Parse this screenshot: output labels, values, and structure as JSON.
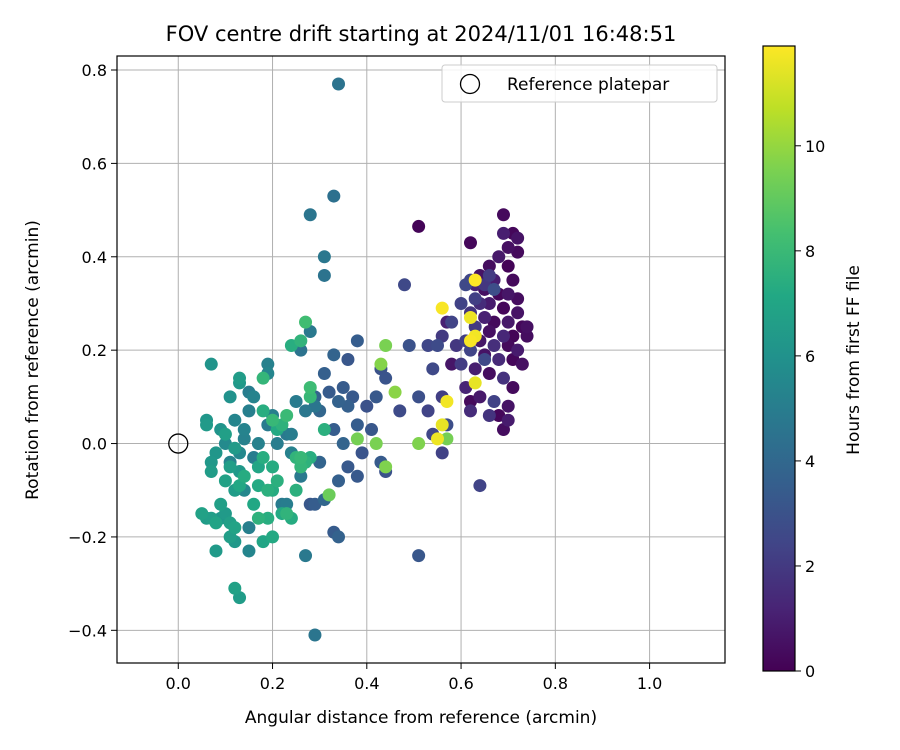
{
  "chart_data": {
    "type": "scatter",
    "title": "FOV centre drift starting at 2024/11/01 16:48:51",
    "xlabel": "Angular distance from reference (arcmin)",
    "ylabel": "Rotation from reference (arcmin)",
    "xlim": [
      -0.13,
      1.16
    ],
    "ylim": [
      -0.47,
      0.83
    ],
    "xticks": [
      0.0,
      0.2,
      0.4,
      0.6,
      0.8,
      1.0
    ],
    "xtick_labels": [
      "0.0",
      "0.2",
      "0.4",
      "0.6",
      "0.8",
      "1.0"
    ],
    "yticks": [
      -0.4,
      -0.2,
      0.0,
      0.2,
      0.4,
      0.6,
      0.8
    ],
    "ytick_labels": [
      "−0.4",
      "−0.2",
      "0.0",
      "0.2",
      "0.4",
      "0.6",
      "0.8"
    ],
    "grid": true,
    "legend": {
      "placement": "top-right",
      "entries": [
        "Reference platepar"
      ]
    },
    "reference_point": {
      "x": 0.0,
      "y": 0.0
    },
    "colorbar": {
      "label": "Hours from first FF file",
      "range": [
        0,
        11.9
      ],
      "ticks": [
        0,
        2,
        4,
        6,
        8,
        10
      ],
      "tick_labels": [
        "0",
        "2",
        "4",
        "6",
        "8",
        "10"
      ],
      "colormap": "viridis"
    },
    "points": [
      [
        0.51,
        0.465,
        0.1
      ],
      [
        0.62,
        0.43,
        0.2
      ],
      [
        0.69,
        0.49,
        0.3
      ],
      [
        0.71,
        0.45,
        0.2
      ],
      [
        0.7,
        0.42,
        0.5
      ],
      [
        0.72,
        0.41,
        0.3
      ],
      [
        0.68,
        0.4,
        0.8
      ],
      [
        0.66,
        0.38,
        0.4
      ],
      [
        0.7,
        0.38,
        0.1
      ],
      [
        0.64,
        0.36,
        0.6
      ],
      [
        0.67,
        0.35,
        1.0
      ],
      [
        0.71,
        0.35,
        0.3
      ],
      [
        0.63,
        0.34,
        1.2
      ],
      [
        0.65,
        0.33,
        0.5
      ],
      [
        0.68,
        0.32,
        0.2
      ],
      [
        0.7,
        0.32,
        0.7
      ],
      [
        0.72,
        0.31,
        0.4
      ],
      [
        0.64,
        0.3,
        1.5
      ],
      [
        0.66,
        0.3,
        0.9
      ],
      [
        0.69,
        0.29,
        0.2
      ],
      [
        0.72,
        0.28,
        0.6
      ],
      [
        0.62,
        0.28,
        1.8
      ],
      [
        0.65,
        0.27,
        1.1
      ],
      [
        0.67,
        0.26,
        0.3
      ],
      [
        0.7,
        0.26,
        0.8
      ],
      [
        0.73,
        0.25,
        0.2
      ],
      [
        0.63,
        0.25,
        2.0
      ],
      [
        0.66,
        0.24,
        0.5
      ],
      [
        0.69,
        0.23,
        1.3
      ],
      [
        0.71,
        0.23,
        0.1
      ],
      [
        0.74,
        0.23,
        0.4
      ],
      [
        0.61,
        0.22,
        2.2
      ],
      [
        0.64,
        0.22,
        0.7
      ],
      [
        0.67,
        0.21,
        1.6
      ],
      [
        0.7,
        0.21,
        0.3
      ],
      [
        0.72,
        0.2,
        0.9
      ],
      [
        0.59,
        0.21,
        1.9
      ],
      [
        0.62,
        0.2,
        2.4
      ],
      [
        0.65,
        0.19,
        0.6
      ],
      [
        0.68,
        0.18,
        1.4
      ],
      [
        0.71,
        0.18,
        0.2
      ],
      [
        0.73,
        0.17,
        0.5
      ],
      [
        0.6,
        0.17,
        2.1
      ],
      [
        0.63,
        0.16,
        1.0
      ],
      [
        0.66,
        0.15,
        0.4
      ],
      [
        0.69,
        0.14,
        1.7
      ],
      [
        0.71,
        0.12,
        0.3
      ],
      [
        0.61,
        0.12,
        1.2
      ],
      [
        0.64,
        0.1,
        0.8
      ],
      [
        0.67,
        0.09,
        2.3
      ],
      [
        0.7,
        0.08,
        0.6
      ],
      [
        0.62,
        0.07,
        1.5
      ],
      [
        0.68,
        0.06,
        0.2
      ],
      [
        0.7,
        0.05,
        0.9
      ],
      [
        0.69,
        0.03,
        0.4
      ],
      [
        0.66,
        0.06,
        1.8
      ],
      [
        0.62,
        0.09,
        0.3
      ],
      [
        0.58,
        0.17,
        0.7
      ],
      [
        0.57,
        0.26,
        1.1
      ],
      [
        0.56,
        0.23,
        2.0
      ],
      [
        0.65,
        0.18,
        2.6
      ],
      [
        0.64,
        -0.09,
        2.4
      ],
      [
        0.74,
        0.25,
        0.5
      ],
      [
        0.72,
        0.44,
        0.6
      ],
      [
        0.69,
        0.45,
        1.0
      ],
      [
        0.62,
        0.35,
        2.5
      ],
      [
        0.63,
        0.31,
        2.2
      ],
      [
        0.61,
        0.34,
        2.6
      ],
      [
        0.66,
        0.36,
        2.1
      ],
      [
        0.65,
        0.34,
        1.9
      ],
      [
        0.67,
        0.33,
        2.8
      ],
      [
        0.6,
        0.3,
        2.3
      ],
      [
        0.58,
        0.26,
        2.4
      ],
      [
        0.55,
        0.21,
        2.7
      ],
      [
        0.53,
        0.21,
        2.5
      ],
      [
        0.54,
        0.16,
        2.6
      ],
      [
        0.56,
        0.1,
        2.2
      ],
      [
        0.57,
        0.04,
        2.8
      ],
      [
        0.53,
        0.07,
        2.4
      ],
      [
        0.54,
        0.02,
        2.5
      ],
      [
        0.56,
        -0.02,
        2.3
      ],
      [
        0.51,
        0.1,
        2.9
      ],
      [
        0.49,
        0.21,
        3.0
      ],
      [
        0.48,
        0.34,
        2.6
      ],
      [
        0.51,
        -0.24,
        3.2
      ],
      [
        0.47,
        0.07,
        2.7
      ],
      [
        0.43,
        0.16,
        3.0
      ],
      [
        0.44,
        0.14,
        3.1
      ],
      [
        0.42,
        0.1,
        3.3
      ],
      [
        0.4,
        0.08,
        3.0
      ],
      [
        0.41,
        0.03,
        3.2
      ],
      [
        0.43,
        -0.04,
        3.4
      ],
      [
        0.39,
        -0.02,
        3.1
      ],
      [
        0.38,
        0.04,
        3.5
      ],
      [
        0.37,
        0.1,
        3.3
      ],
      [
        0.36,
        0.08,
        3.6
      ],
      [
        0.35,
        0.12,
        3.4
      ],
      [
        0.34,
        0.09,
        3.7
      ],
      [
        0.36,
        0.18,
        3.2
      ],
      [
        0.38,
        0.22,
        3.5
      ],
      [
        0.33,
        0.19,
        3.8
      ],
      [
        0.31,
        0.15,
        3.6
      ],
      [
        0.32,
        0.11,
        3.4
      ],
      [
        0.3,
        0.07,
        3.9
      ],
      [
        0.29,
        0.1,
        3.7
      ],
      [
        0.33,
        0.03,
        3.5
      ],
      [
        0.35,
        0.0,
        3.8
      ],
      [
        0.36,
        -0.05,
        3.3
      ],
      [
        0.34,
        -0.08,
        3.6
      ],
      [
        0.31,
        -0.12,
        3.9
      ],
      [
        0.33,
        -0.19,
        3.4
      ],
      [
        0.34,
        -0.2,
        3.7
      ],
      [
        0.28,
        -0.13,
        3.2
      ],
      [
        0.29,
        -0.13,
        3.5
      ],
      [
        0.3,
        -0.04,
        3.8
      ],
      [
        0.44,
        -0.06,
        3.0
      ],
      [
        0.38,
        -0.07,
        3.3
      ],
      [
        0.34,
        0.77,
        4.5
      ],
      [
        0.28,
        0.49,
        4.6
      ],
      [
        0.33,
        0.53,
        4.4
      ],
      [
        0.31,
        0.4,
        4.7
      ],
      [
        0.31,
        0.36,
        4.5
      ],
      [
        0.28,
        0.24,
        4.8
      ],
      [
        0.26,
        0.2,
        4.5
      ],
      [
        0.29,
        0.08,
        4.6
      ],
      [
        0.25,
        0.09,
        4.9
      ],
      [
        0.27,
        0.07,
        4.7
      ],
      [
        0.24,
        0.02,
        5.0
      ],
      [
        0.23,
        0.02,
        4.8
      ],
      [
        0.2,
        0.06,
        5.1
      ],
      [
        0.19,
        0.04,
        4.9
      ],
      [
        0.17,
        0.0,
        5.2
      ],
      [
        0.16,
        -0.03,
        5.0
      ],
      [
        0.14,
        0.03,
        5.3
      ],
      [
        0.15,
        0.07,
        5.1
      ],
      [
        0.12,
        0.05,
        5.4
      ],
      [
        0.14,
        0.01,
        5.2
      ],
      [
        0.13,
        -0.02,
        5.5
      ],
      [
        0.11,
        -0.04,
        5.3
      ],
      [
        0.1,
        0.0,
        5.6
      ],
      [
        0.19,
        0.17,
        5.2
      ],
      [
        0.19,
        0.15,
        5.4
      ],
      [
        0.15,
        0.11,
        5.0
      ],
      [
        0.16,
        0.1,
        5.3
      ],
      [
        0.14,
        -0.1,
        5.5
      ],
      [
        0.15,
        -0.18,
        5.1
      ],
      [
        0.15,
        -0.23,
        5.4
      ],
      [
        0.22,
        -0.13,
        4.9
      ],
      [
        0.27,
        -0.24,
        4.8
      ],
      [
        0.29,
        -0.41,
        4.6
      ],
      [
        0.23,
        -0.13,
        5.0
      ],
      [
        0.26,
        -0.07,
        4.8
      ],
      [
        0.24,
        -0.02,
        5.2
      ],
      [
        0.21,
        0.0,
        5.0
      ],
      [
        0.07,
        0.17,
        6.1
      ],
      [
        0.13,
        0.13,
        6.3
      ],
      [
        0.11,
        0.1,
        6.0
      ],
      [
        0.13,
        0.14,
        6.5
      ],
      [
        0.06,
        0.05,
        6.2
      ],
      [
        0.06,
        0.04,
        6.4
      ],
      [
        0.09,
        0.03,
        6.1
      ],
      [
        0.1,
        0.02,
        6.7
      ],
      [
        0.07,
        -0.04,
        6.3
      ],
      [
        0.07,
        -0.06,
        6.5
      ],
      [
        0.08,
        -0.02,
        6.2
      ],
      [
        0.11,
        -0.05,
        6.6
      ],
      [
        0.12,
        -0.01,
        6.4
      ],
      [
        0.1,
        -0.08,
        6.8
      ],
      [
        0.12,
        -0.1,
        6.5
      ],
      [
        0.13,
        -0.06,
        6.3
      ],
      [
        0.09,
        -0.13,
        6.7
      ],
      [
        0.1,
        -0.15,
        6.4
      ],
      [
        0.08,
        -0.17,
        6.9
      ],
      [
        0.07,
        -0.16,
        6.6
      ],
      [
        0.09,
        -0.16,
        6.2
      ],
      [
        0.05,
        -0.15,
        6.8
      ],
      [
        0.06,
        -0.16,
        6.5
      ],
      [
        0.11,
        -0.17,
        6.7
      ],
      [
        0.12,
        -0.21,
        6.3
      ],
      [
        0.12,
        -0.18,
        6.9
      ],
      [
        0.11,
        -0.2,
        6.6
      ],
      [
        0.08,
        -0.23,
        6.4
      ],
      [
        0.12,
        -0.31,
        6.8
      ],
      [
        0.13,
        -0.33,
        6.5
      ],
      [
        0.18,
        -0.21,
        7.0
      ],
      [
        0.2,
        -0.2,
        7.2
      ],
      [
        0.13,
        -0.09,
        7.1
      ],
      [
        0.14,
        -0.07,
        7.3
      ],
      [
        0.17,
        -0.05,
        7.0
      ],
      [
        0.18,
        -0.03,
        7.4
      ],
      [
        0.17,
        -0.09,
        7.2
      ],
      [
        0.19,
        -0.1,
        7.5
      ],
      [
        0.2,
        -0.1,
        7.3
      ],
      [
        0.16,
        -0.13,
        7.1
      ],
      [
        0.17,
        -0.16,
        7.6
      ],
      [
        0.19,
        -0.16,
        7.4
      ],
      [
        0.22,
        -0.15,
        7.2
      ],
      [
        0.23,
        -0.15,
        7.7
      ],
      [
        0.24,
        -0.16,
        7.3
      ],
      [
        0.25,
        -0.1,
        7.5
      ],
      [
        0.26,
        -0.05,
        7.8
      ],
      [
        0.27,
        -0.04,
        7.6
      ],
      [
        0.28,
        -0.03,
        7.4
      ],
      [
        0.26,
        -0.03,
        7.9
      ],
      [
        0.25,
        -0.03,
        7.7
      ],
      [
        0.21,
        -0.08,
        7.5
      ],
      [
        0.2,
        -0.05,
        7.3
      ],
      [
        0.22,
        0.04,
        7.6
      ],
      [
        0.2,
        0.05,
        7.9
      ],
      [
        0.18,
        0.07,
        7.4
      ],
      [
        0.18,
        0.14,
        7.8
      ],
      [
        0.21,
        0.03,
        7.2
      ],
      [
        0.23,
        0.06,
        8.0
      ],
      [
        0.24,
        0.21,
        7.4
      ],
      [
        0.26,
        0.22,
        7.7
      ],
      [
        0.27,
        0.26,
        8.2
      ],
      [
        0.28,
        0.1,
        7.9
      ],
      [
        0.28,
        0.12,
        8.1
      ],
      [
        0.31,
        0.03,
        7.5
      ],
      [
        0.32,
        -0.11,
        9.2
      ],
      [
        0.38,
        0.01,
        9.4
      ],
      [
        0.42,
        0.0,
        9.5
      ],
      [
        0.44,
        -0.05,
        9.6
      ],
      [
        0.43,
        0.17,
        9.7
      ],
      [
        0.44,
        0.21,
        9.5
      ],
      [
        0.46,
        0.11,
        9.8
      ],
      [
        0.51,
        0.0,
        9.6
      ],
      [
        0.57,
        0.01,
        9.4
      ],
      [
        0.55,
        0.01,
        11.6
      ],
      [
        0.56,
        0.04,
        11.5
      ],
      [
        0.56,
        0.29,
        11.8
      ],
      [
        0.57,
        0.09,
        11.7
      ],
      [
        0.62,
        0.27,
        11.6
      ],
      [
        0.62,
        0.22,
        11.8
      ],
      [
        0.63,
        0.23,
        11.7
      ],
      [
        0.63,
        0.35,
        11.9
      ],
      [
        0.63,
        0.13,
        11.5
      ]
    ]
  }
}
